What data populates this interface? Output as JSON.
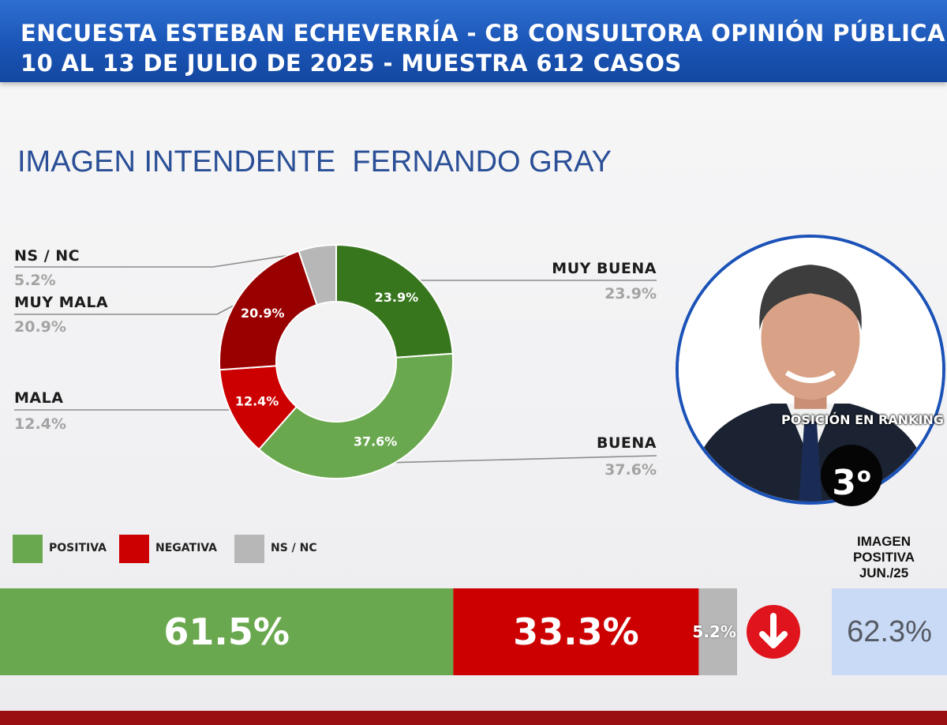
{
  "header": {
    "line1": "ENCUESTA ESTEBAN ECHEVERRÍA - CB CONSULTORA OPINIÓN PÚBLICA",
    "line2": "10 AL 13 DE JULIO DE 2025 - MUESTRA 612 CASOS"
  },
  "subtitle": "IMAGEN INTENDENTE  FERNANDO GRAY",
  "ranking": {
    "label": "POSICIÓN EN RANKING",
    "value": "3",
    "suffix": "o"
  },
  "legend": [
    {
      "label": "POSITIVA",
      "color": "#6aa84f"
    },
    {
      "label": "NEGATIVA",
      "color": "#cc0000"
    },
    {
      "label": "NS / NC",
      "color": "#b7b7b7"
    }
  ],
  "june": {
    "label_lines": [
      "IMAGEN",
      "POSITIVA",
      "JUN./25"
    ],
    "value": "62.3%",
    "trend_icon": "down-arrow-icon"
  },
  "chart_data": [
    {
      "type": "pie",
      "title": "IMAGEN INTENDENTE  FERNANDO GRAY",
      "donut": true,
      "slices": [
        {
          "name": "MUY BUENA",
          "value": 23.9,
          "label": "23.9%",
          "color": "#38761d"
        },
        {
          "name": "BUENA",
          "value": 37.6,
          "label": "37.6%",
          "color": "#6aa84f"
        },
        {
          "name": "MALA",
          "value": 12.4,
          "label": "12.4%",
          "color": "#cc0000"
        },
        {
          "name": "MUY MALA",
          "value": 20.9,
          "label": "20.9%",
          "color": "#990000"
        },
        {
          "name": "NS / NC",
          "value": 5.2,
          "label": "5.2%",
          "color": "#b7b7b7"
        }
      ]
    },
    {
      "type": "bar",
      "stacked": true,
      "orientation": "horizontal",
      "series": [
        {
          "name": "POSITIVA",
          "value": 61.5,
          "label": "61.5%",
          "color": "#6aa84f"
        },
        {
          "name": "NEGATIVA",
          "value": 33.3,
          "label": "33.3%",
          "color": "#cc0000"
        },
        {
          "name": "NS / NC",
          "value": 5.2,
          "label": "5.2%",
          "color": "#b7b7b7"
        }
      ]
    }
  ]
}
